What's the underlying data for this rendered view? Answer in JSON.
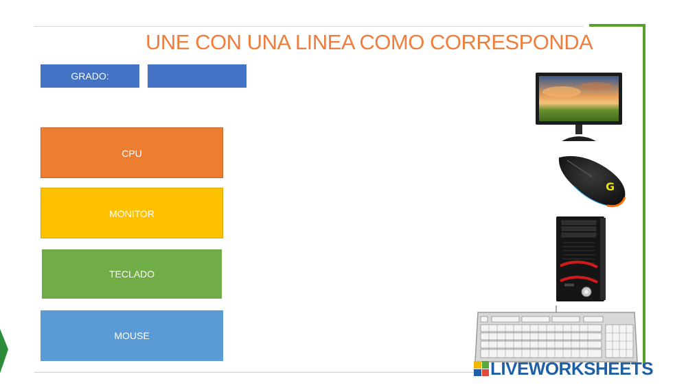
{
  "title": "UNE CON UNA LINEA COMO CORRESPONDA",
  "grade": {
    "label": "GRADO:",
    "value": "",
    "placeholder": ""
  },
  "words": [
    {
      "id": "cpu",
      "label": "CPU",
      "color": "#ed7d31"
    },
    {
      "id": "monitor",
      "label": "MONITOR",
      "color": "#ffc000"
    },
    {
      "id": "teclado",
      "label": "TECLADO",
      "color": "#70ad47"
    },
    {
      "id": "mouse",
      "label": "MOUSE",
      "color": "#5b9bd5"
    }
  ],
  "pictures": [
    "monitor-image",
    "mouse-image",
    "cpu-tower-image",
    "keyboard-image"
  ],
  "brand": {
    "text": "LIVEWORKSHEETS",
    "color": "#1f5fa6"
  },
  "accent_colors": {
    "title": "#ef7d3b",
    "frame": "#5aa02c",
    "grade": "#4472c4"
  }
}
